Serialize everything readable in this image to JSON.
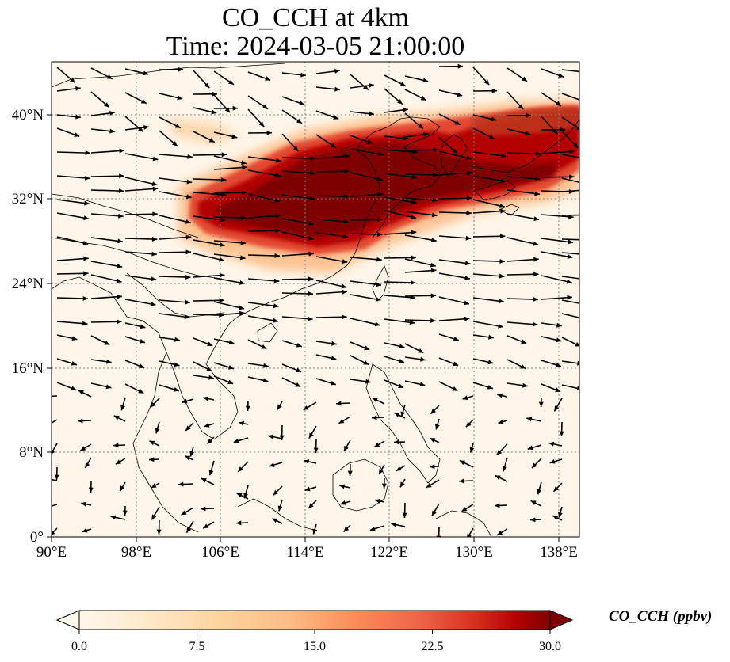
{
  "title": {
    "line1": "CO_CCH at 4km",
    "line2": "Time: 2024-03-05 21:00:00"
  },
  "map": {
    "projection": "PlateCarree",
    "lon_range": [
      90,
      140
    ],
    "lat_range": [
      0,
      45
    ],
    "lon_ticks": [
      90,
      98,
      106,
      114,
      122,
      130,
      138
    ],
    "lon_tick_labels": [
      "90°E",
      "98°E",
      "106°E",
      "114°E",
      "122°E",
      "130°E",
      "138°E"
    ],
    "lat_ticks": [
      0,
      8,
      16,
      24,
      32,
      40
    ],
    "lat_tick_labels": [
      "0°",
      "8°N",
      "16°N",
      "24°N",
      "32°N",
      "40°N"
    ],
    "gridlines": true,
    "colormap": "OrRd",
    "colors": {
      "low": "#fff7ec",
      "mid": "#fdbb84",
      "high": "#d7301f",
      "max": "#7f0000",
      "coastline": "#000000",
      "grid": "#808080"
    },
    "overlay": "wind vectors (arrows)"
  },
  "colorbar": {
    "label": "CO_CCH (ppbv)",
    "min": 0.0,
    "max": 30.0,
    "ticks": [
      "0.0",
      "7.5",
      "15.0",
      "22.5",
      "30.0"
    ],
    "extend": "both",
    "orientation": "horizontal"
  }
}
